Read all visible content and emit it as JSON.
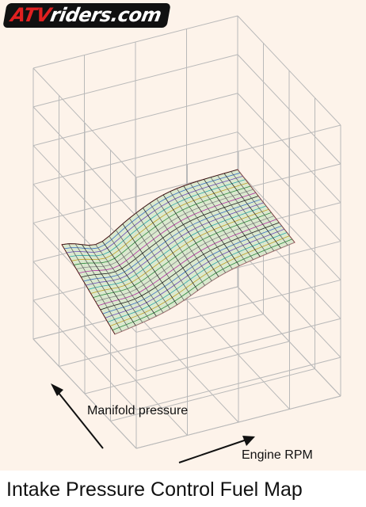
{
  "logo": {
    "text": "ATVriders.com",
    "accent_color": "#e02020"
  },
  "axis_labels": {
    "manifold": "Manifold pressure",
    "rpm": "Engine RPM"
  },
  "caption": "Intake Pressure Control Fuel Map",
  "colors": {
    "background": "#fdf3ea",
    "grid": "#b9b9b9",
    "surface_fill": "#d7e8cc",
    "edge": "#e03030",
    "arrow": "#111111"
  }
}
